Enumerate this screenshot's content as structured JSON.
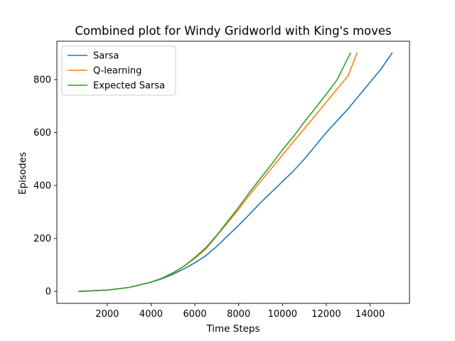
{
  "chart_data": {
    "type": "line",
    "title": "Combined plot for Windy Gridworld with King's moves",
    "xlabel": "Time Steps",
    "ylabel": "Episodes",
    "xlim": [
      -300,
      15800
    ],
    "ylim": [
      -45,
      945
    ],
    "xticks": [
      2000,
      4000,
      6000,
      8000,
      10000,
      12000,
      14000
    ],
    "yticks": [
      0,
      200,
      400,
      600,
      800
    ],
    "grid": false,
    "legend_position": "upper left",
    "series": [
      {
        "name": "Sarsa",
        "color": "#1f77b4",
        "x": [
          700,
          2000,
          3000,
          4000,
          4500,
          5000,
          5500,
          6000,
          6500,
          7000,
          7500,
          8000,
          8500,
          9000,
          9500,
          10000,
          10500,
          11000,
          11500,
          12000,
          12500,
          13000,
          13500,
          14000,
          14500,
          15000
        ],
        "y": [
          0,
          5,
          15,
          35,
          48,
          65,
          85,
          108,
          135,
          170,
          210,
          250,
          292,
          335,
          375,
          415,
          455,
          500,
          550,
          600,
          645,
          690,
          740,
          790,
          840,
          900
        ]
      },
      {
        "name": "Q-learning",
        "color": "#ff7f0e",
        "x": [
          700,
          2000,
          3000,
          4000,
          4500,
          5000,
          5500,
          6000,
          6500,
          7000,
          7500,
          8000,
          8500,
          9000,
          9500,
          10000,
          10500,
          11000,
          11500,
          12000,
          12500,
          13000,
          13400
        ],
        "y": [
          0,
          5,
          15,
          35,
          50,
          70,
          95,
          125,
          160,
          210,
          260,
          310,
          365,
          415,
          465,
          515,
          565,
          615,
          665,
          715,
          765,
          815,
          900
        ]
      },
      {
        "name": "Expected Sarsa",
        "color": "#2ca02c",
        "x": [
          700,
          2000,
          3000,
          4000,
          4500,
          5000,
          5500,
          6000,
          6500,
          7000,
          7500,
          8000,
          8500,
          9000,
          9500,
          10000,
          10500,
          11000,
          11500,
          12000,
          12500,
          13100
        ],
        "y": [
          0,
          5,
          15,
          35,
          50,
          70,
          95,
          128,
          165,
          212,
          265,
          318,
          375,
          428,
          480,
          535,
          585,
          640,
          692,
          745,
          800,
          900
        ]
      }
    ]
  }
}
